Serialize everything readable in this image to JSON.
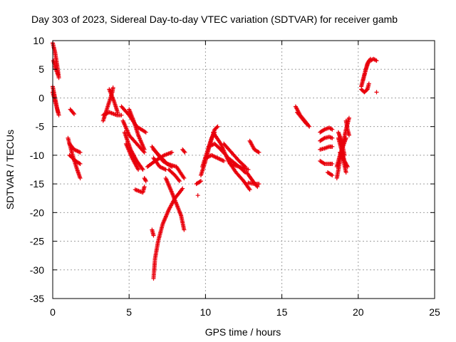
{
  "chart_data": {
    "type": "scatter",
    "title": "Day 303 of 2023, Sidereal Day-to-day VTEC variation (SDTVAR) for receiver gamb",
    "xlabel": "GPS time / hours",
    "ylabel": "SDTVAR / TECUs",
    "xlim": [
      0,
      25
    ],
    "ylim": [
      -35,
      10
    ],
    "xticks": [
      0,
      5,
      10,
      15,
      20,
      25
    ],
    "xtick_labels": [
      "0",
      "5",
      "10",
      "15",
      "20",
      "25"
    ],
    "yticks": [
      -35,
      -30,
      -25,
      -20,
      -15,
      -10,
      -5,
      0,
      5,
      10
    ],
    "ytick_labels": [
      "-35",
      "-30",
      "-25",
      "-20",
      "-15",
      "-10",
      "-5",
      "0",
      "5",
      "10"
    ],
    "grid": true,
    "marker": "plus",
    "color": "#e8000b",
    "tracks": [
      {
        "name": "track-1",
        "points": [
          [
            0.0,
            9.6
          ],
          [
            0.15,
            8.0
          ],
          [
            0.3,
            5.5
          ],
          [
            0.4,
            3.5
          ]
        ]
      },
      {
        "name": "track-2",
        "points": [
          [
            0.05,
            6.5
          ],
          [
            0.2,
            5.0
          ],
          [
            0.35,
            4.0
          ]
        ]
      },
      {
        "name": "track-3",
        "points": [
          [
            0.0,
            2.0
          ],
          [
            0.15,
            0.0
          ],
          [
            0.3,
            -2.0
          ],
          [
            0.4,
            -3.0
          ]
        ]
      },
      {
        "name": "track-4",
        "points": [
          [
            0.0,
            1.0
          ],
          [
            0.2,
            -1.0
          ],
          [
            0.35,
            -2.5
          ]
        ]
      },
      {
        "name": "track-5",
        "points": [
          [
            1.15,
            -2.0
          ],
          [
            1.4,
            -2.8
          ]
        ]
      },
      {
        "name": "track-6",
        "points": [
          [
            1.0,
            -7.0
          ],
          [
            1.3,
            -10.0
          ],
          [
            1.6,
            -12.5
          ],
          [
            1.8,
            -14.0
          ]
        ]
      },
      {
        "name": "track-7",
        "points": [
          [
            1.1,
            -8.0
          ],
          [
            1.4,
            -9.0
          ],
          [
            1.8,
            -9.5
          ]
        ]
      },
      {
        "name": "track-8",
        "points": [
          [
            1.1,
            -10.0
          ],
          [
            1.5,
            -11.0
          ],
          [
            1.8,
            -11.5
          ]
        ]
      },
      {
        "name": "track-9",
        "points": [
          [
            3.3,
            -4.0
          ],
          [
            3.6,
            -1.5
          ],
          [
            3.9,
            1.0
          ],
          [
            3.95,
            1.8
          ]
        ]
      },
      {
        "name": "track-10",
        "points": [
          [
            3.3,
            -3.0
          ],
          [
            3.7,
            -2.5
          ],
          [
            4.2,
            -3.0
          ],
          [
            4.5,
            -3.0
          ]
        ]
      },
      {
        "name": "track-11",
        "points": [
          [
            3.7,
            1.5
          ],
          [
            4.0,
            -0.5
          ],
          [
            4.25,
            -2.5
          ]
        ]
      },
      {
        "name": "track-12",
        "points": [
          [
            4.5,
            -1.5
          ],
          [
            5.0,
            -3.0
          ],
          [
            5.5,
            -5.0
          ],
          [
            6.1,
            -6.0
          ]
        ]
      },
      {
        "name": "track-13",
        "points": [
          [
            4.6,
            -4.0
          ],
          [
            5.0,
            -6.5
          ],
          [
            5.5,
            -8.0
          ],
          [
            6.0,
            -9.5
          ]
        ]
      },
      {
        "name": "track-14",
        "points": [
          [
            4.7,
            -6.0
          ],
          [
            5.1,
            -9.0
          ],
          [
            5.5,
            -11.0
          ],
          [
            5.9,
            -12.5
          ]
        ]
      },
      {
        "name": "track-15",
        "points": [
          [
            4.8,
            -8.0
          ],
          [
            5.2,
            -10.5
          ],
          [
            5.6,
            -12.5
          ]
        ]
      },
      {
        "name": "track-16",
        "points": [
          [
            5.0,
            -2.0
          ],
          [
            5.3,
            -4.0
          ],
          [
            5.6,
            -6.5
          ],
          [
            6.0,
            -9.0
          ]
        ]
      },
      {
        "name": "track-17",
        "points": [
          [
            5.4,
            -16.0
          ],
          [
            5.9,
            -16.5
          ],
          [
            6.0,
            -15.5
          ]
        ]
      },
      {
        "name": "track-18",
        "points": [
          [
            6.0,
            -14.0
          ],
          [
            6.1,
            -14.5
          ]
        ]
      },
      {
        "name": "track-19",
        "points": [
          [
            6.2,
            -12.0
          ],
          [
            6.7,
            -11.0
          ],
          [
            7.3,
            -10.0
          ],
          [
            7.8,
            -9.5
          ]
        ]
      },
      {
        "name": "track-20",
        "points": [
          [
            6.5,
            -8.5
          ],
          [
            7.2,
            -11.0
          ],
          [
            7.8,
            -12.0
          ]
        ]
      },
      {
        "name": "track-21",
        "points": [
          [
            6.6,
            -9.0
          ],
          [
            7.5,
            -11.5
          ],
          [
            8.1,
            -12.0
          ],
          [
            8.6,
            -14.0
          ]
        ]
      },
      {
        "name": "track-22",
        "points": [
          [
            6.6,
            -10.5
          ],
          [
            7.0,
            -12.0
          ],
          [
            7.4,
            -12.5
          ]
        ]
      },
      {
        "name": "track-23",
        "points": [
          [
            6.6,
            -31.5
          ],
          [
            6.7,
            -28.0
          ],
          [
            6.9,
            -25.0
          ],
          [
            7.2,
            -22.0
          ],
          [
            7.6,
            -19.5
          ],
          [
            8.0,
            -17.5
          ],
          [
            8.3,
            -16.5
          ],
          [
            8.5,
            -15.8
          ]
        ]
      },
      {
        "name": "track-24",
        "points": [
          [
            6.5,
            -23.0
          ],
          [
            6.6,
            -24.0
          ]
        ]
      },
      {
        "name": "track-25",
        "points": [
          [
            7.4,
            -14.0
          ],
          [
            7.8,
            -16.5
          ],
          [
            8.1,
            -18.5
          ],
          [
            8.4,
            -20.5
          ],
          [
            8.6,
            -23.0
          ]
        ]
      },
      {
        "name": "track-26",
        "points": [
          [
            7.6,
            -12.5
          ],
          [
            8.0,
            -13.5
          ],
          [
            8.3,
            -14.5
          ]
        ]
      },
      {
        "name": "track-27",
        "points": [
          [
            8.5,
            -9.0
          ],
          [
            8.65,
            -9.5
          ]
        ]
      },
      {
        "name": "track-28",
        "points": [
          [
            9.5,
            -17.0
          ]
        ]
      },
      {
        "name": "track-29",
        "points": [
          [
            9.4,
            -15.0
          ],
          [
            9.7,
            -14.5
          ]
        ]
      },
      {
        "name": "track-30",
        "points": [
          [
            9.7,
            -13.5
          ],
          [
            10.0,
            -11.0
          ],
          [
            10.3,
            -8.0
          ],
          [
            10.6,
            -5.5
          ],
          [
            10.8,
            -5.0
          ]
        ]
      },
      {
        "name": "track-31",
        "points": [
          [
            9.8,
            -12.0
          ],
          [
            10.1,
            -9.5
          ],
          [
            10.4,
            -7.0
          ],
          [
            10.6,
            -6.0
          ]
        ]
      },
      {
        "name": "track-32",
        "points": [
          [
            10.0,
            -10.5
          ],
          [
            10.4,
            -10.0
          ],
          [
            10.8,
            -10.5
          ],
          [
            11.2,
            -11.0
          ]
        ]
      },
      {
        "name": "track-33",
        "points": [
          [
            10.2,
            -8.5
          ],
          [
            10.6,
            -8.0
          ],
          [
            11.0,
            -9.0
          ],
          [
            11.5,
            -10.5
          ],
          [
            12.2,
            -12.0
          ],
          [
            12.6,
            -13.0
          ]
        ]
      },
      {
        "name": "track-34",
        "points": [
          [
            10.5,
            -6.0
          ],
          [
            11.0,
            -8.0
          ],
          [
            11.5,
            -11.0
          ],
          [
            12.0,
            -13.0
          ],
          [
            12.5,
            -14.5
          ],
          [
            12.9,
            -16.0
          ]
        ]
      },
      {
        "name": "track-35",
        "points": [
          [
            11.2,
            -8.0
          ],
          [
            11.7,
            -9.5
          ],
          [
            12.2,
            -11.0
          ],
          [
            12.6,
            -12.0
          ]
        ]
      },
      {
        "name": "track-36",
        "points": [
          [
            11.6,
            -11.5
          ],
          [
            12.2,
            -12.0
          ],
          [
            12.8,
            -12.5
          ]
        ]
      },
      {
        "name": "track-37",
        "points": [
          [
            12.9,
            -7.5
          ],
          [
            13.2,
            -9.0
          ],
          [
            13.5,
            -9.5
          ]
        ]
      },
      {
        "name": "track-38",
        "points": [
          [
            12.7,
            -13.0
          ],
          [
            13.1,
            -14.5
          ],
          [
            13.4,
            -15.5
          ]
        ]
      },
      {
        "name": "track-39",
        "points": [
          [
            12.8,
            -14.8
          ],
          [
            13.2,
            -15.0
          ],
          [
            13.5,
            -15.0
          ]
        ]
      },
      {
        "name": "track-40",
        "points": [
          [
            15.9,
            -1.5
          ],
          [
            16.2,
            -3.0
          ],
          [
            16.5,
            -4.0
          ],
          [
            16.8,
            -5.0
          ]
        ]
      },
      {
        "name": "track-41",
        "points": [
          [
            16.0,
            -2.5
          ],
          [
            16.3,
            -3.5
          ],
          [
            16.6,
            -4.5
          ]
        ]
      },
      {
        "name": "track-42",
        "points": [
          [
            17.5,
            -6.0
          ],
          [
            17.8,
            -5.5
          ],
          [
            18.1,
            -5.2
          ],
          [
            18.3,
            -5.5
          ]
        ]
      },
      {
        "name": "track-43",
        "points": [
          [
            17.5,
            -7.5
          ],
          [
            17.8,
            -7.0
          ],
          [
            18.1,
            -6.8
          ],
          [
            18.3,
            -7.0
          ]
        ]
      },
      {
        "name": "track-44",
        "points": [
          [
            17.5,
            -9.0
          ],
          [
            17.8,
            -8.8
          ],
          [
            18.1,
            -8.5
          ],
          [
            18.3,
            -8.5
          ]
        ]
      },
      {
        "name": "track-45",
        "points": [
          [
            17.5,
            -11.0
          ],
          [
            17.8,
            -11.5
          ],
          [
            18.1,
            -11.5
          ],
          [
            18.3,
            -11.5
          ]
        ]
      },
      {
        "name": "track-46",
        "points": [
          [
            18.0,
            -13.0
          ],
          [
            18.3,
            -13.5
          ]
        ]
      },
      {
        "name": "track-47",
        "points": [
          [
            18.6,
            -14.0
          ],
          [
            18.8,
            -11.0
          ],
          [
            19.0,
            -8.0
          ],
          [
            19.2,
            -5.5
          ],
          [
            19.4,
            -3.5
          ]
        ]
      },
      {
        "name": "track-48",
        "points": [
          [
            18.6,
            -12.0
          ],
          [
            18.8,
            -10.0
          ],
          [
            19.0,
            -8.5
          ],
          [
            19.2,
            -7.0
          ]
        ]
      },
      {
        "name": "track-49",
        "points": [
          [
            18.7,
            -7.0
          ],
          [
            18.9,
            -9.0
          ],
          [
            19.1,
            -11.0
          ],
          [
            19.3,
            -12.0
          ]
        ]
      },
      {
        "name": "track-50",
        "points": [
          [
            18.7,
            -6.0
          ],
          [
            18.9,
            -7.5
          ],
          [
            19.1,
            -10.0
          ]
        ]
      },
      {
        "name": "track-51",
        "points": [
          [
            18.8,
            -9.5
          ],
          [
            19.0,
            -10.5
          ],
          [
            19.2,
            -13.0
          ]
        ]
      },
      {
        "name": "track-52",
        "points": [
          [
            19.2,
            -4.0
          ],
          [
            19.3,
            -5.5
          ],
          [
            19.4,
            -6.5
          ]
        ]
      },
      {
        "name": "track-53",
        "points": [
          [
            20.2,
            2.0
          ],
          [
            20.4,
            4.0
          ],
          [
            20.6,
            6.0
          ],
          [
            20.8,
            6.8
          ]
        ]
      },
      {
        "name": "track-54",
        "points": [
          [
            20.3,
            3.0
          ],
          [
            20.5,
            5.0
          ],
          [
            20.7,
            6.5
          ]
        ]
      },
      {
        "name": "track-55",
        "points": [
          [
            20.2,
            1.5
          ],
          [
            20.4,
            1.0
          ],
          [
            20.6,
            1.5
          ],
          [
            20.7,
            2.5
          ]
        ]
      },
      {
        "name": "track-56",
        "points": [
          [
            20.8,
            6.5
          ],
          [
            21.0,
            6.8
          ],
          [
            21.2,
            6.5
          ]
        ]
      },
      {
        "name": "track-57",
        "points": [
          [
            21.2,
            1.0
          ]
        ]
      }
    ]
  }
}
